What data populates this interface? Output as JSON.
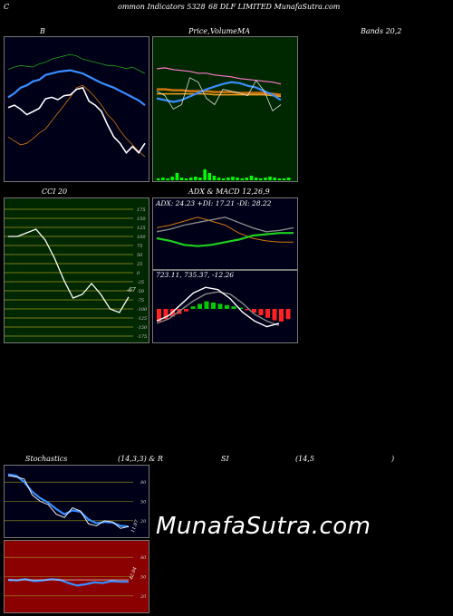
{
  "header": {
    "title_left": "C",
    "title_mid": "ommon  Indicators 5328",
    "title_right": "68  DLF LIMITED MunafaSutra.com"
  },
  "labels": {
    "bollinger": "B",
    "price": "Price,",
    "volume": "Volume",
    "ma": "MA",
    "bands": "Bands 20,2",
    "cci": "CCI 20",
    "adx_macd": "ADX  & MACD 12,26,9",
    "adx_values": "ADX: 24.23  +DI: 17.21 -DI: 28.22",
    "macd_values": "723.11,  735.37,  -12.26",
    "stochastics": "Stochastics",
    "stoch_params": "(14,3,3) & R",
    "rsi": "SI",
    "rsi_params": "(14,5",
    "rsi_close": ")",
    "cci_last": "-67",
    "stoch_last": "11.07",
    "rsi_last": "42.04"
  },
  "watermark": "MunafaSutra.com",
  "colors": {
    "price_bg": "#002800",
    "cci_bg": "#002800",
    "rsi_bg": "#8b0000",
    "dark_bg": "#000018",
    "blue": "#3a8dff",
    "orange": "#d2760f",
    "green": "#1fa31f",
    "pink": "#ff77cc"
  },
  "chart_data": [
    {
      "type": "line",
      "panel": "bollinger",
      "series": [
        {
          "values": [
            27,
            30,
            25,
            18,
            22,
            26,
            38,
            40,
            37,
            42,
            43,
            50,
            52,
            35,
            30,
            22,
            5,
            -10,
            -18,
            -30,
            -22,
            -30,
            -18
          ]
        },
        {
          "values": [
            40,
            45,
            52,
            55,
            60,
            62,
            68,
            70,
            72,
            73,
            74,
            72,
            70,
            66,
            62,
            58,
            55,
            52,
            48,
            44,
            40,
            36,
            30
          ]
        },
        {
          "values": [
            75,
            78,
            80,
            79,
            78,
            82,
            84,
            88,
            90,
            92,
            94,
            92,
            88,
            86,
            84,
            82,
            80,
            80,
            78,
            76,
            78,
            74,
            70
          ]
        },
        {
          "values": [
            -10,
            -15,
            -20,
            -18,
            -12,
            -5,
            0,
            10,
            20,
            30,
            40,
            52,
            55,
            48,
            40,
            30,
            18,
            10,
            -2,
            -12,
            -20,
            -28,
            -35
          ]
        }
      ]
    },
    {
      "type": "line",
      "panel": "price_ma",
      "series": [
        {
          "values": [
            85,
            86,
            84,
            83,
            82,
            80,
            80,
            78,
            77,
            76,
            74,
            73,
            72,
            71,
            70,
            68
          ]
        },
        {
          "values": [
            62,
            62,
            61,
            61,
            60,
            60,
            60,
            59,
            59,
            59,
            58,
            58,
            58,
            58,
            57,
            56
          ]
        },
        {
          "values": [
            57,
            57,
            57,
            57,
            57,
            57,
            57,
            56,
            56,
            56,
            56,
            56,
            56,
            56,
            55,
            54
          ]
        },
        {
          "values": [
            52,
            50,
            48,
            50,
            54,
            58,
            62,
            65,
            68,
            70,
            69,
            66,
            64,
            60,
            56,
            50
          ]
        },
        {
          "values": [
            60,
            55,
            40,
            45,
            75,
            70,
            52,
            45,
            62,
            60,
            58,
            55,
            72,
            60,
            38,
            45
          ]
        }
      ]
    },
    {
      "type": "bar",
      "panel": "volume",
      "values": [
        2,
        3,
        2,
        4,
        8,
        3,
        2,
        3,
        4,
        3,
        12,
        8,
        5,
        3,
        2,
        3,
        4,
        3,
        2,
        3,
        5,
        3,
        2,
        3,
        4,
        3,
        2,
        2,
        3
      ]
    },
    {
      "type": "line",
      "panel": "cci",
      "y_ticks": [
        "175",
        "150",
        "125",
        "100",
        "75",
        "50",
        "25",
        "0",
        "-25",
        "-50",
        "-75",
        "-100",
        "-125",
        "-150",
        "-175"
      ],
      "series": [
        {
          "values": [
            100,
            100,
            110,
            120,
            90,
            40,
            -20,
            -70,
            -60,
            -30,
            -60,
            -100,
            -110,
            -67
          ]
        }
      ]
    },
    {
      "type": "line",
      "panel": "adx",
      "series": [
        {
          "values": [
            20,
            18,
            15,
            14,
            15,
            17,
            19,
            22,
            23,
            24,
            24
          ]
        },
        {
          "values": [
            28,
            30,
            33,
            36,
            33,
            30,
            24,
            20,
            18,
            17,
            17
          ]
        },
        {
          "values": [
            25,
            27,
            30,
            32,
            34,
            36,
            32,
            28,
            25,
            26,
            28
          ]
        }
      ]
    },
    {
      "type": "line",
      "panel": "macd",
      "series": [
        {
          "values": [
            -10,
            -5,
            5,
            15,
            20,
            18,
            10,
            -2,
            -10,
            -15,
            -12
          ]
        },
        {
          "values": [
            -12,
            -8,
            0,
            8,
            14,
            16,
            14,
            6,
            -4,
            -10,
            -14
          ]
        }
      ],
      "histogram": [
        -10,
        -8,
        -6,
        -4,
        -2,
        2,
        4,
        6,
        5,
        4,
        3,
        2,
        1,
        -1,
        -3,
        -5,
        -7,
        -9,
        -10,
        -8
      ]
    },
    {
      "type": "line",
      "panel": "stochastics",
      "y_ticks": [
        "80",
        "50",
        "20"
      ],
      "series": [
        {
          "values": [
            90,
            88,
            85,
            60,
            50,
            45,
            30,
            25,
            40,
            35,
            15,
            12,
            20,
            18,
            8,
            11
          ]
        },
        {
          "values": [
            92,
            90,
            80,
            65,
            55,
            48,
            38,
            30,
            36,
            34,
            22,
            16,
            18,
            17,
            12,
            11
          ]
        }
      ]
    },
    {
      "type": "line",
      "panel": "rsi",
      "y_ticks": [
        "80",
        "50",
        "20"
      ],
      "series": [
        {
          "values": [
            45,
            44,
            46,
            43,
            44,
            46,
            45,
            40,
            36,
            38,
            41,
            40,
            43,
            42,
            42
          ]
        }
      ]
    }
  ]
}
